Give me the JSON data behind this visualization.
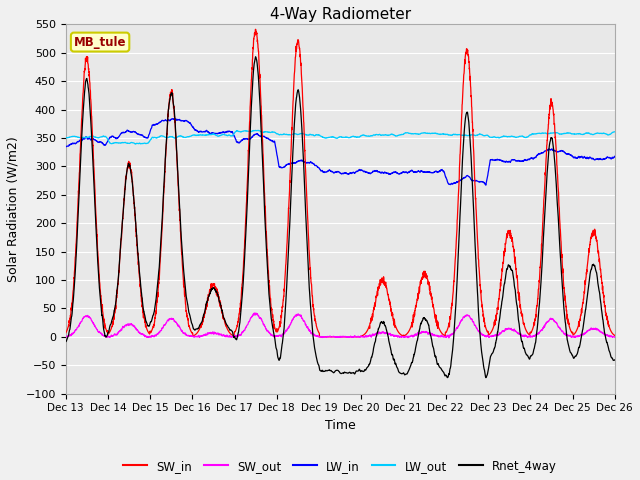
{
  "title": "4-Way Radiometer",
  "xlabel": "Time",
  "ylabel": "Solar Radiation (W/m2)",
  "ylim": [
    -100,
    550
  ],
  "yticks": [
    -100,
    -50,
    0,
    50,
    100,
    150,
    200,
    250,
    300,
    350,
    400,
    450,
    500,
    550
  ],
  "legend_labels": [
    "SW_in",
    "SW_out",
    "LW_in",
    "LW_out",
    "Rnet_4way"
  ],
  "legend_colors": [
    "#ff0000",
    "#ff00ff",
    "#0000ff",
    "#00ccff",
    "#000000"
  ],
  "station_label": "MB_tule",
  "station_label_color": "#990000",
  "station_box_facecolor": "#ffffcc",
  "station_box_edgecolor": "#cccc00",
  "axes_bg": "#e8e8e8",
  "grid_color": "#ffffff",
  "fig_bg": "#f0f0f0",
  "xtick_labels": [
    "Dec 13",
    "Dec 14",
    "Dec 15",
    "Dec 16",
    "Dec 17",
    "Dec 18",
    "Dec 19",
    "Dec 20",
    "Dec 21",
    "Dec 22",
    "Dec 23",
    "Dec 24",
    "Dec 25",
    "Dec 26"
  ],
  "sw_peaks": [
    490,
    305,
    430,
    90,
    540,
    520,
    0,
    100,
    110,
    505,
    185,
    410,
    185
  ],
  "lw_in_daily": [
    335,
    345,
    370,
    360,
    340,
    295,
    290,
    290,
    290,
    265,
    310,
    315,
    315
  ],
  "lw_out_daily": [
    352,
    342,
    352,
    355,
    362,
    356,
    352,
    355,
    358,
    355,
    352,
    358,
    358
  ],
  "n_points": 3120
}
